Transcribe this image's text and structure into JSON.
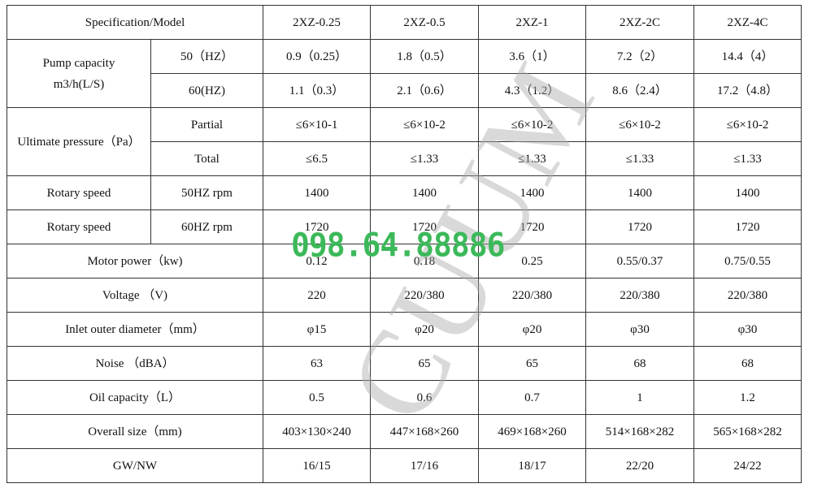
{
  "header": {
    "label": "Specification/Model",
    "models": [
      "2XZ-0.25",
      "2XZ-0.5",
      "2XZ-1",
      "2XZ-2C",
      "2XZ-4C"
    ]
  },
  "pump_capacity": {
    "label": "Pump capacity",
    "unit": "m3/h(L/S)",
    "rows": [
      {
        "sub": "50（HZ）",
        "values": [
          "0.9（0.25）",
          "1.8（0.5）",
          "3.6（1）",
          "7.2（2）",
          "14.4（4）"
        ]
      },
      {
        "sub": "60(HZ)",
        "values": [
          "1.1（0.3）",
          "2.1（0.6）",
          "4.3（1.2）",
          "8.6（2.4）",
          "17.2（4.8）"
        ]
      }
    ]
  },
  "ultimate_pressure": {
    "label": "Ultimate pressure（Pa）",
    "rows": [
      {
        "sub": "Partial",
        "values": [
          "≤6×10-1",
          "≤6×10-2",
          "≤6×10-2",
          "≤6×10-2",
          "≤6×10-2"
        ]
      },
      {
        "sub": "Total",
        "values": [
          "≤6.5",
          "≤1.33",
          "≤1.33",
          "≤1.33",
          "≤1.33"
        ]
      }
    ]
  },
  "rotary": [
    {
      "label": "Rotary speed",
      "sub": "50HZ rpm",
      "values": [
        "1400",
        "1400",
        "1400",
        "1400",
        "1400"
      ]
    },
    {
      "label": "Rotary speed",
      "sub": "60HZ rpm",
      "values": [
        "1720",
        "1720",
        "1720",
        "1720",
        "1720"
      ]
    }
  ],
  "rows": [
    {
      "label": "Motor power（kw)",
      "values": [
        "0.12",
        "0.18",
        "0.25",
        "0.55/0.37",
        "0.75/0.55"
      ]
    },
    {
      "label": "Voltage （V)",
      "values": [
        "220",
        "220/380",
        "220/380",
        "220/380",
        "220/380"
      ]
    },
    {
      "label": "Inlet outer diameter（mm）",
      "values": [
        "φ15",
        "φ20",
        "φ20",
        "φ30",
        "φ30"
      ]
    },
    {
      "label": "Noise （dBA）",
      "values": [
        "63",
        "65",
        "65",
        "68",
        "68"
      ]
    },
    {
      "label": "Oil capacity（L）",
      "values": [
        "0.5",
        "0.6",
        "0.7",
        "1",
        "1.2"
      ]
    },
    {
      "label": "Overall size（mm)",
      "values": [
        "403×130×240",
        "447×168×260",
        "469×168×260",
        "514×168×282",
        "565×168×282"
      ]
    },
    {
      "label": "GW/NW",
      "values": [
        "16/15",
        "17/16",
        "18/17",
        "22/20",
        "24/22"
      ]
    }
  ],
  "watermark": {
    "phone": "098.64.88886",
    "text": "CUUM",
    "phone_color": "#3cb95a"
  }
}
